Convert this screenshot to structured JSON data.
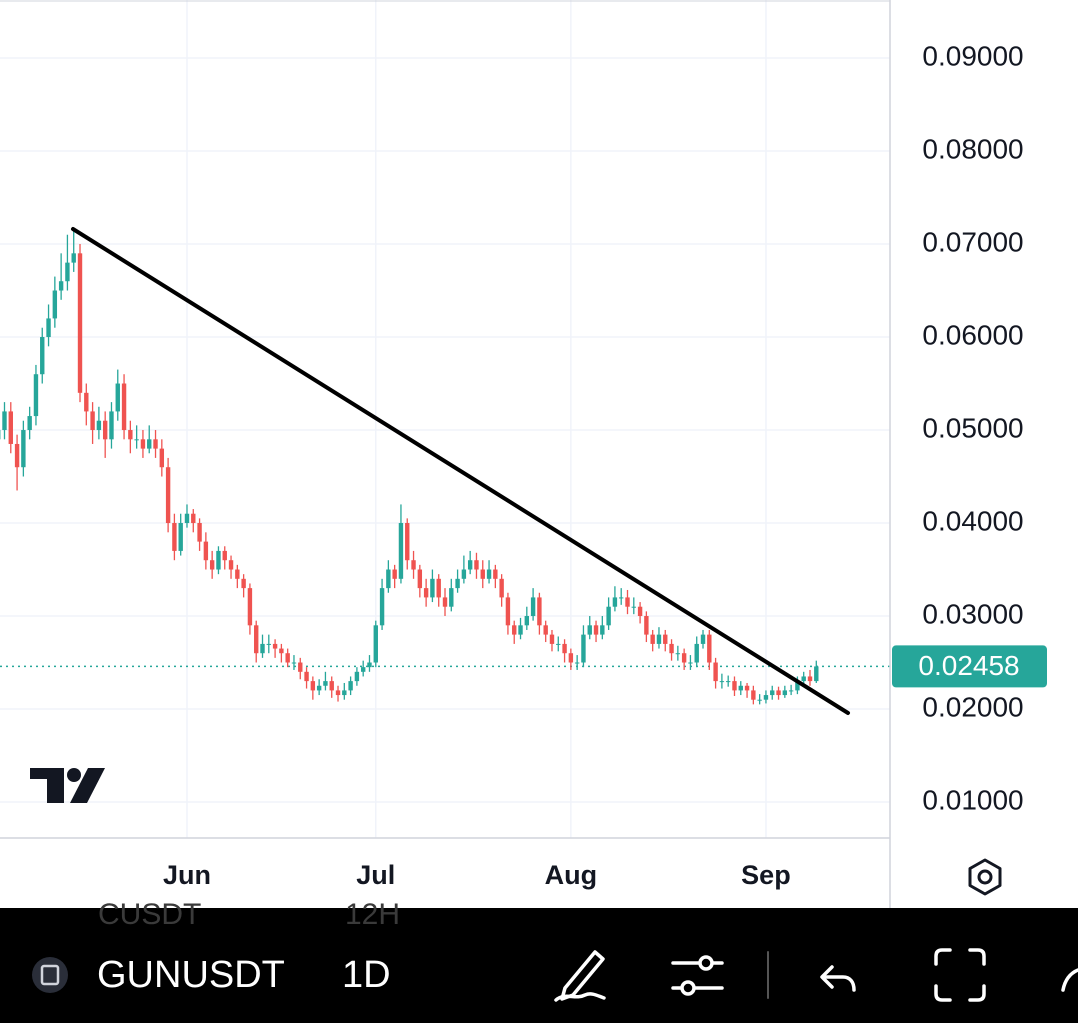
{
  "chart_data": {
    "type": "candlestick",
    "categories": [
      null,
      null,
      null,
      null,
      null,
      null,
      null,
      null,
      null,
      null,
      null,
      null,
      null,
      null,
      null,
      null,
      null,
      null,
      null,
      null,
      null,
      null,
      null,
      null,
      null,
      null,
      null,
      null,
      null,
      null,
      "Jun",
      null,
      null,
      null,
      null,
      null,
      null,
      null,
      null,
      null,
      null,
      null,
      null,
      null,
      null,
      null,
      null,
      null,
      null,
      null,
      null,
      null,
      null,
      null,
      null,
      null,
      null,
      null,
      null,
      null,
      "Jul",
      null,
      null,
      null,
      null,
      null,
      null,
      null,
      null,
      null,
      null,
      null,
      null,
      null,
      null,
      null,
      null,
      null,
      null,
      null,
      null,
      null,
      null,
      null,
      null,
      null,
      null,
      null,
      null,
      null,
      null,
      "Aug",
      null,
      null,
      null,
      null,
      null,
      null,
      null,
      null,
      null,
      null,
      null,
      null,
      null,
      null,
      null,
      null,
      null,
      null,
      null,
      null,
      null,
      null,
      null,
      null,
      null,
      null,
      null,
      null,
      null,
      null,
      "Sep",
      null,
      null,
      null,
      null,
      null,
      null,
      null,
      null
    ],
    "open": [
      0.049,
      0.05,
      0.052,
      0.0485,
      0.046,
      0.05,
      0.0515,
      0.056,
      0.06,
      0.062,
      0.065,
      0.066,
      0.068,
      0.069,
      0.054,
      0.052,
      0.05,
      0.051,
      0.049,
      0.052,
      0.055,
      0.05,
      0.049,
      0.049,
      0.048,
      0.049,
      0.048,
      0.046,
      0.04,
      0.037,
      0.04,
      0.041,
      0.04,
      0.038,
      0.036,
      0.035,
      0.037,
      0.036,
      0.035,
      0.034,
      0.033,
      0.029,
      0.026,
      0.027,
      0.027,
      0.0265,
      0.026,
      0.025,
      0.025,
      0.024,
      0.023,
      0.022,
      0.0225,
      0.023,
      0.022,
      0.0215,
      0.022,
      0.023,
      0.024,
      0.0245,
      0.025,
      0.029,
      0.033,
      0.035,
      0.034,
      0.04,
      0.036,
      0.035,
      0.033,
      0.032,
      0.034,
      0.032,
      0.031,
      0.033,
      0.034,
      0.035,
      0.036,
      0.035,
      0.034,
      0.035,
      0.034,
      0.032,
      0.029,
      0.028,
      0.029,
      0.03,
      0.032,
      0.029,
      0.028,
      0.027,
      0.027,
      0.026,
      0.025,
      0.025,
      0.028,
      0.029,
      0.028,
      0.029,
      0.031,
      0.032,
      0.032,
      0.031,
      0.031,
      0.03,
      0.028,
      0.027,
      0.028,
      0.027,
      0.026,
      0.026,
      0.025,
      0.025,
      0.027,
      0.028,
      0.025,
      0.023,
      0.023,
      0.023,
      0.022,
      0.0225,
      0.022,
      0.021,
      0.021,
      0.0215,
      0.022,
      0.0215,
      0.022,
      0.022,
      0.023,
      0.0235,
      0.023
    ],
    "high": [
      0.051,
      0.053,
      0.053,
      0.0495,
      0.051,
      0.0525,
      0.057,
      0.061,
      0.0635,
      0.0665,
      0.069,
      0.071,
      0.0715,
      0.07,
      0.055,
      0.053,
      0.0525,
      0.052,
      0.053,
      0.0565,
      0.056,
      0.051,
      0.0505,
      0.05,
      0.0505,
      0.05,
      0.049,
      0.047,
      0.041,
      0.041,
      0.042,
      0.0415,
      0.0405,
      0.039,
      0.037,
      0.0375,
      0.0375,
      0.0365,
      0.0355,
      0.0345,
      0.0335,
      0.0295,
      0.028,
      0.028,
      0.0275,
      0.027,
      0.0265,
      0.0258,
      0.0255,
      0.0245,
      0.0235,
      0.0232,
      0.024,
      0.0235,
      0.0225,
      0.0228,
      0.0235,
      0.0245,
      0.0252,
      0.0258,
      0.0295,
      0.034,
      0.036,
      0.0355,
      0.042,
      0.0405,
      0.037,
      0.0355,
      0.034,
      0.035,
      0.0345,
      0.033,
      0.034,
      0.035,
      0.0365,
      0.037,
      0.0368,
      0.036,
      0.036,
      0.0355,
      0.0345,
      0.0325,
      0.0295,
      0.0298,
      0.031,
      0.033,
      0.0325,
      0.0295,
      0.0285,
      0.0278,
      0.0275,
      0.0265,
      0.0258,
      0.029,
      0.03,
      0.0295,
      0.03,
      0.032,
      0.0332,
      0.033,
      0.0328,
      0.032,
      0.0315,
      0.0305,
      0.0285,
      0.0288,
      0.0285,
      0.0275,
      0.0268,
      0.0265,
      0.0258,
      0.0278,
      0.0285,
      0.0285,
      0.0255,
      0.0238,
      0.0236,
      0.0235,
      0.023,
      0.0228,
      0.0225,
      0.0216,
      0.022,
      0.0225,
      0.0224,
      0.0225,
      0.0226,
      0.0235,
      0.024,
      0.0242,
      0.0252
    ],
    "low": [
      0.048,
      0.049,
      0.0475,
      0.0435,
      0.045,
      0.049,
      0.0505,
      0.055,
      0.059,
      0.061,
      0.064,
      0.065,
      0.067,
      0.053,
      0.0505,
      0.0485,
      0.049,
      0.047,
      0.048,
      0.051,
      0.049,
      0.0475,
      0.048,
      0.047,
      0.0475,
      0.047,
      0.045,
      0.039,
      0.036,
      0.0365,
      0.0395,
      0.039,
      0.037,
      0.035,
      0.034,
      0.0345,
      0.035,
      0.034,
      0.033,
      0.032,
      0.028,
      0.025,
      0.0255,
      0.026,
      0.0255,
      0.025,
      0.0245,
      0.0242,
      0.0232,
      0.0222,
      0.021,
      0.0215,
      0.022,
      0.0212,
      0.0208,
      0.021,
      0.0215,
      0.0225,
      0.0235,
      0.024,
      0.0245,
      0.0285,
      0.0325,
      0.033,
      0.0335,
      0.035,
      0.034,
      0.032,
      0.031,
      0.0315,
      0.031,
      0.03,
      0.0305,
      0.0325,
      0.0335,
      0.0345,
      0.034,
      0.033,
      0.0335,
      0.033,
      0.031,
      0.028,
      0.027,
      0.0275,
      0.0285,
      0.0295,
      0.028,
      0.0272,
      0.0262,
      0.0262,
      0.025,
      0.0242,
      0.0242,
      0.0245,
      0.0275,
      0.0272,
      0.0275,
      0.0285,
      0.0305,
      0.0312,
      0.0302,
      0.0302,
      0.0292,
      0.0272,
      0.0262,
      0.0265,
      0.0262,
      0.0252,
      0.0252,
      0.0242,
      0.0242,
      0.0245,
      0.0265,
      0.0242,
      0.0222,
      0.0222,
      0.0224,
      0.0214,
      0.0215,
      0.0212,
      0.0205,
      0.0205,
      0.0206,
      0.021,
      0.021,
      0.0212,
      0.0215,
      0.0216,
      0.0225,
      0.0225,
      0.0228
    ],
    "close": [
      0.05,
      0.052,
      0.0485,
      0.046,
      0.05,
      0.0515,
      0.056,
      0.06,
      0.062,
      0.065,
      0.066,
      0.068,
      0.069,
      0.054,
      0.052,
      0.05,
      0.051,
      0.049,
      0.052,
      0.055,
      0.05,
      0.049,
      0.049,
      0.048,
      0.049,
      0.048,
      0.046,
      0.04,
      0.037,
      0.04,
      0.041,
      0.04,
      0.038,
      0.036,
      0.035,
      0.037,
      0.036,
      0.035,
      0.034,
      0.033,
      0.029,
      0.026,
      0.027,
      0.027,
      0.0265,
      0.026,
      0.025,
      0.025,
      0.024,
      0.023,
      0.022,
      0.0225,
      0.023,
      0.022,
      0.0215,
      0.022,
      0.023,
      0.024,
      0.0245,
      0.025,
      0.029,
      0.033,
      0.035,
      0.034,
      0.04,
      0.036,
      0.035,
      0.033,
      0.032,
      0.034,
      0.032,
      0.031,
      0.033,
      0.034,
      0.035,
      0.036,
      0.035,
      0.034,
      0.035,
      0.034,
      0.032,
      0.029,
      0.028,
      0.029,
      0.03,
      0.032,
      0.029,
      0.028,
      0.027,
      0.027,
      0.026,
      0.025,
      0.025,
      0.028,
      0.029,
      0.028,
      0.029,
      0.031,
      0.032,
      0.032,
      0.031,
      0.031,
      0.03,
      0.028,
      0.027,
      0.028,
      0.027,
      0.026,
      0.026,
      0.025,
      0.025,
      0.027,
      0.028,
      0.025,
      0.023,
      0.023,
      0.023,
      0.022,
      0.0225,
      0.022,
      0.021,
      0.021,
      0.0215,
      0.022,
      0.0215,
      0.022,
      0.022,
      0.023,
      0.0235,
      0.023,
      0.02458
    ],
    "up_color": "#26a69a",
    "down_color": "#ef5350",
    "ylim": [
      0.00613,
      0.09624
    ],
    "yticks": [
      {
        "value": 0.01,
        "label": "0.01000"
      },
      {
        "value": 0.02,
        "label": "0.02000"
      },
      {
        "value": 0.03,
        "label": "0.03000"
      },
      {
        "value": 0.04,
        "label": "0.04000"
      },
      {
        "value": 0.05,
        "label": "0.05000"
      },
      {
        "value": 0.06,
        "label": "0.06000"
      },
      {
        "value": 0.07,
        "label": "0.07000"
      },
      {
        "value": 0.08,
        "label": "0.08000"
      },
      {
        "value": 0.09,
        "label": "0.09000"
      }
    ],
    "grid": true,
    "last_price": 0.02458,
    "last_price_color": "#26a69a"
  },
  "toolbar": {
    "symbol": "GUNUSDT",
    "interval": "1D",
    "ghost_symbol": "CUSDT",
    "ghost_interval": "12H"
  }
}
